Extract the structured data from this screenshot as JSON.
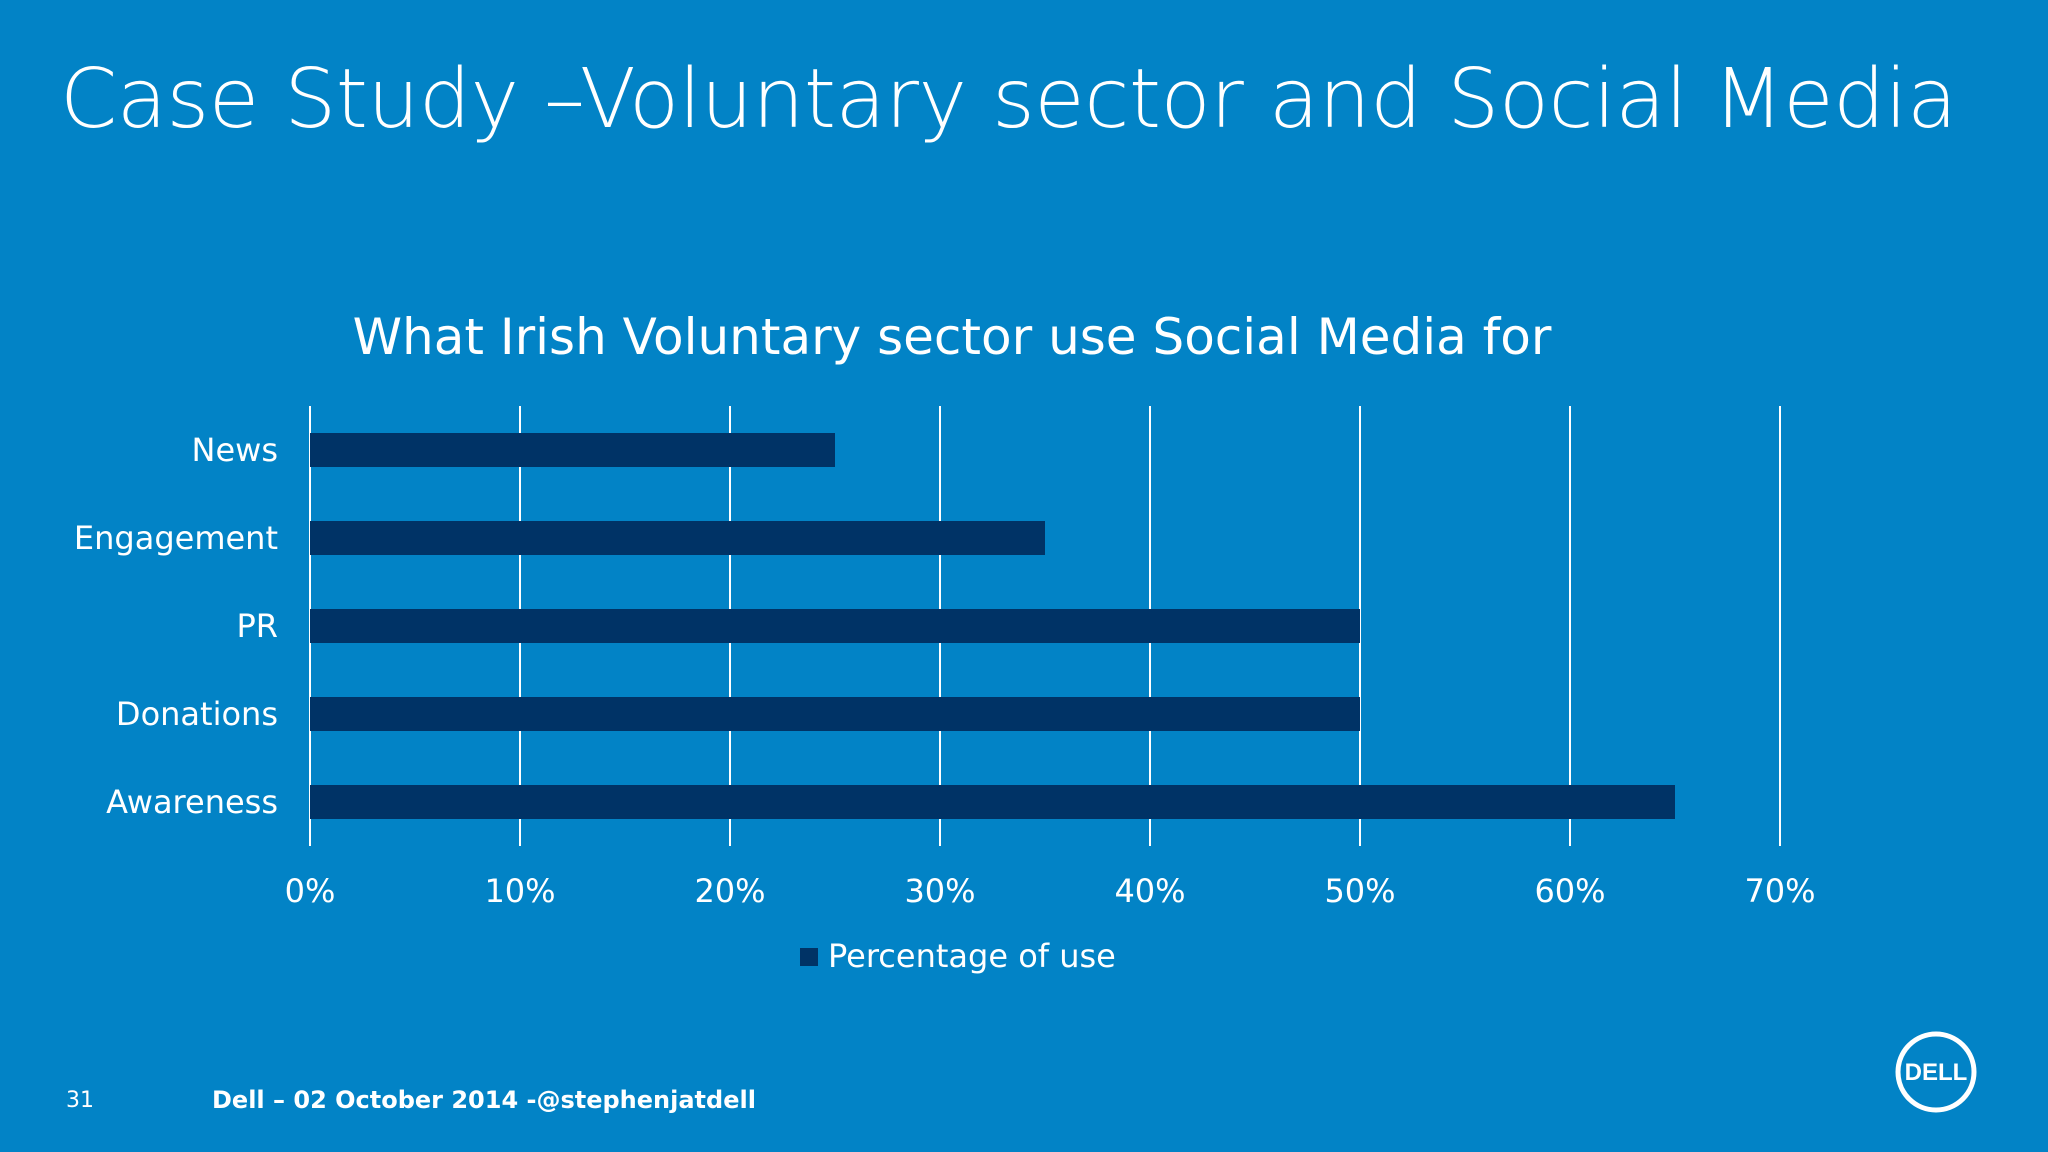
{
  "slide": {
    "title": "Case Study –Voluntary sector and Social Media"
  },
  "chart_data": {
    "type": "bar",
    "orientation": "horizontal",
    "title": "What Irish Voluntary sector use Social Media for",
    "categories": [
      "News",
      "Engagement",
      "PR",
      "Donations",
      "Awareness"
    ],
    "series": [
      {
        "name": "Percentage of use",
        "values": [
          25,
          35,
          50,
          50,
          65
        ]
      }
    ],
    "xlim": [
      0,
      70
    ],
    "x_ticks": [
      0,
      10,
      20,
      30,
      40,
      50,
      60,
      70
    ],
    "x_tick_labels": [
      "0%",
      "10%",
      "20%",
      "30%",
      "40%",
      "50%",
      "60%",
      "70%"
    ],
    "grid": "vertical",
    "legend_placement": "bottom",
    "colors": {
      "bar": "#003366",
      "background": "#0283c6",
      "grid": "#ffffff"
    }
  },
  "footer": {
    "page_number": "31",
    "text": "Dell – 02 October 2014 -@stephenjatdell"
  },
  "logo": {
    "text": "DELL",
    "icon": "dell-logo-icon"
  }
}
